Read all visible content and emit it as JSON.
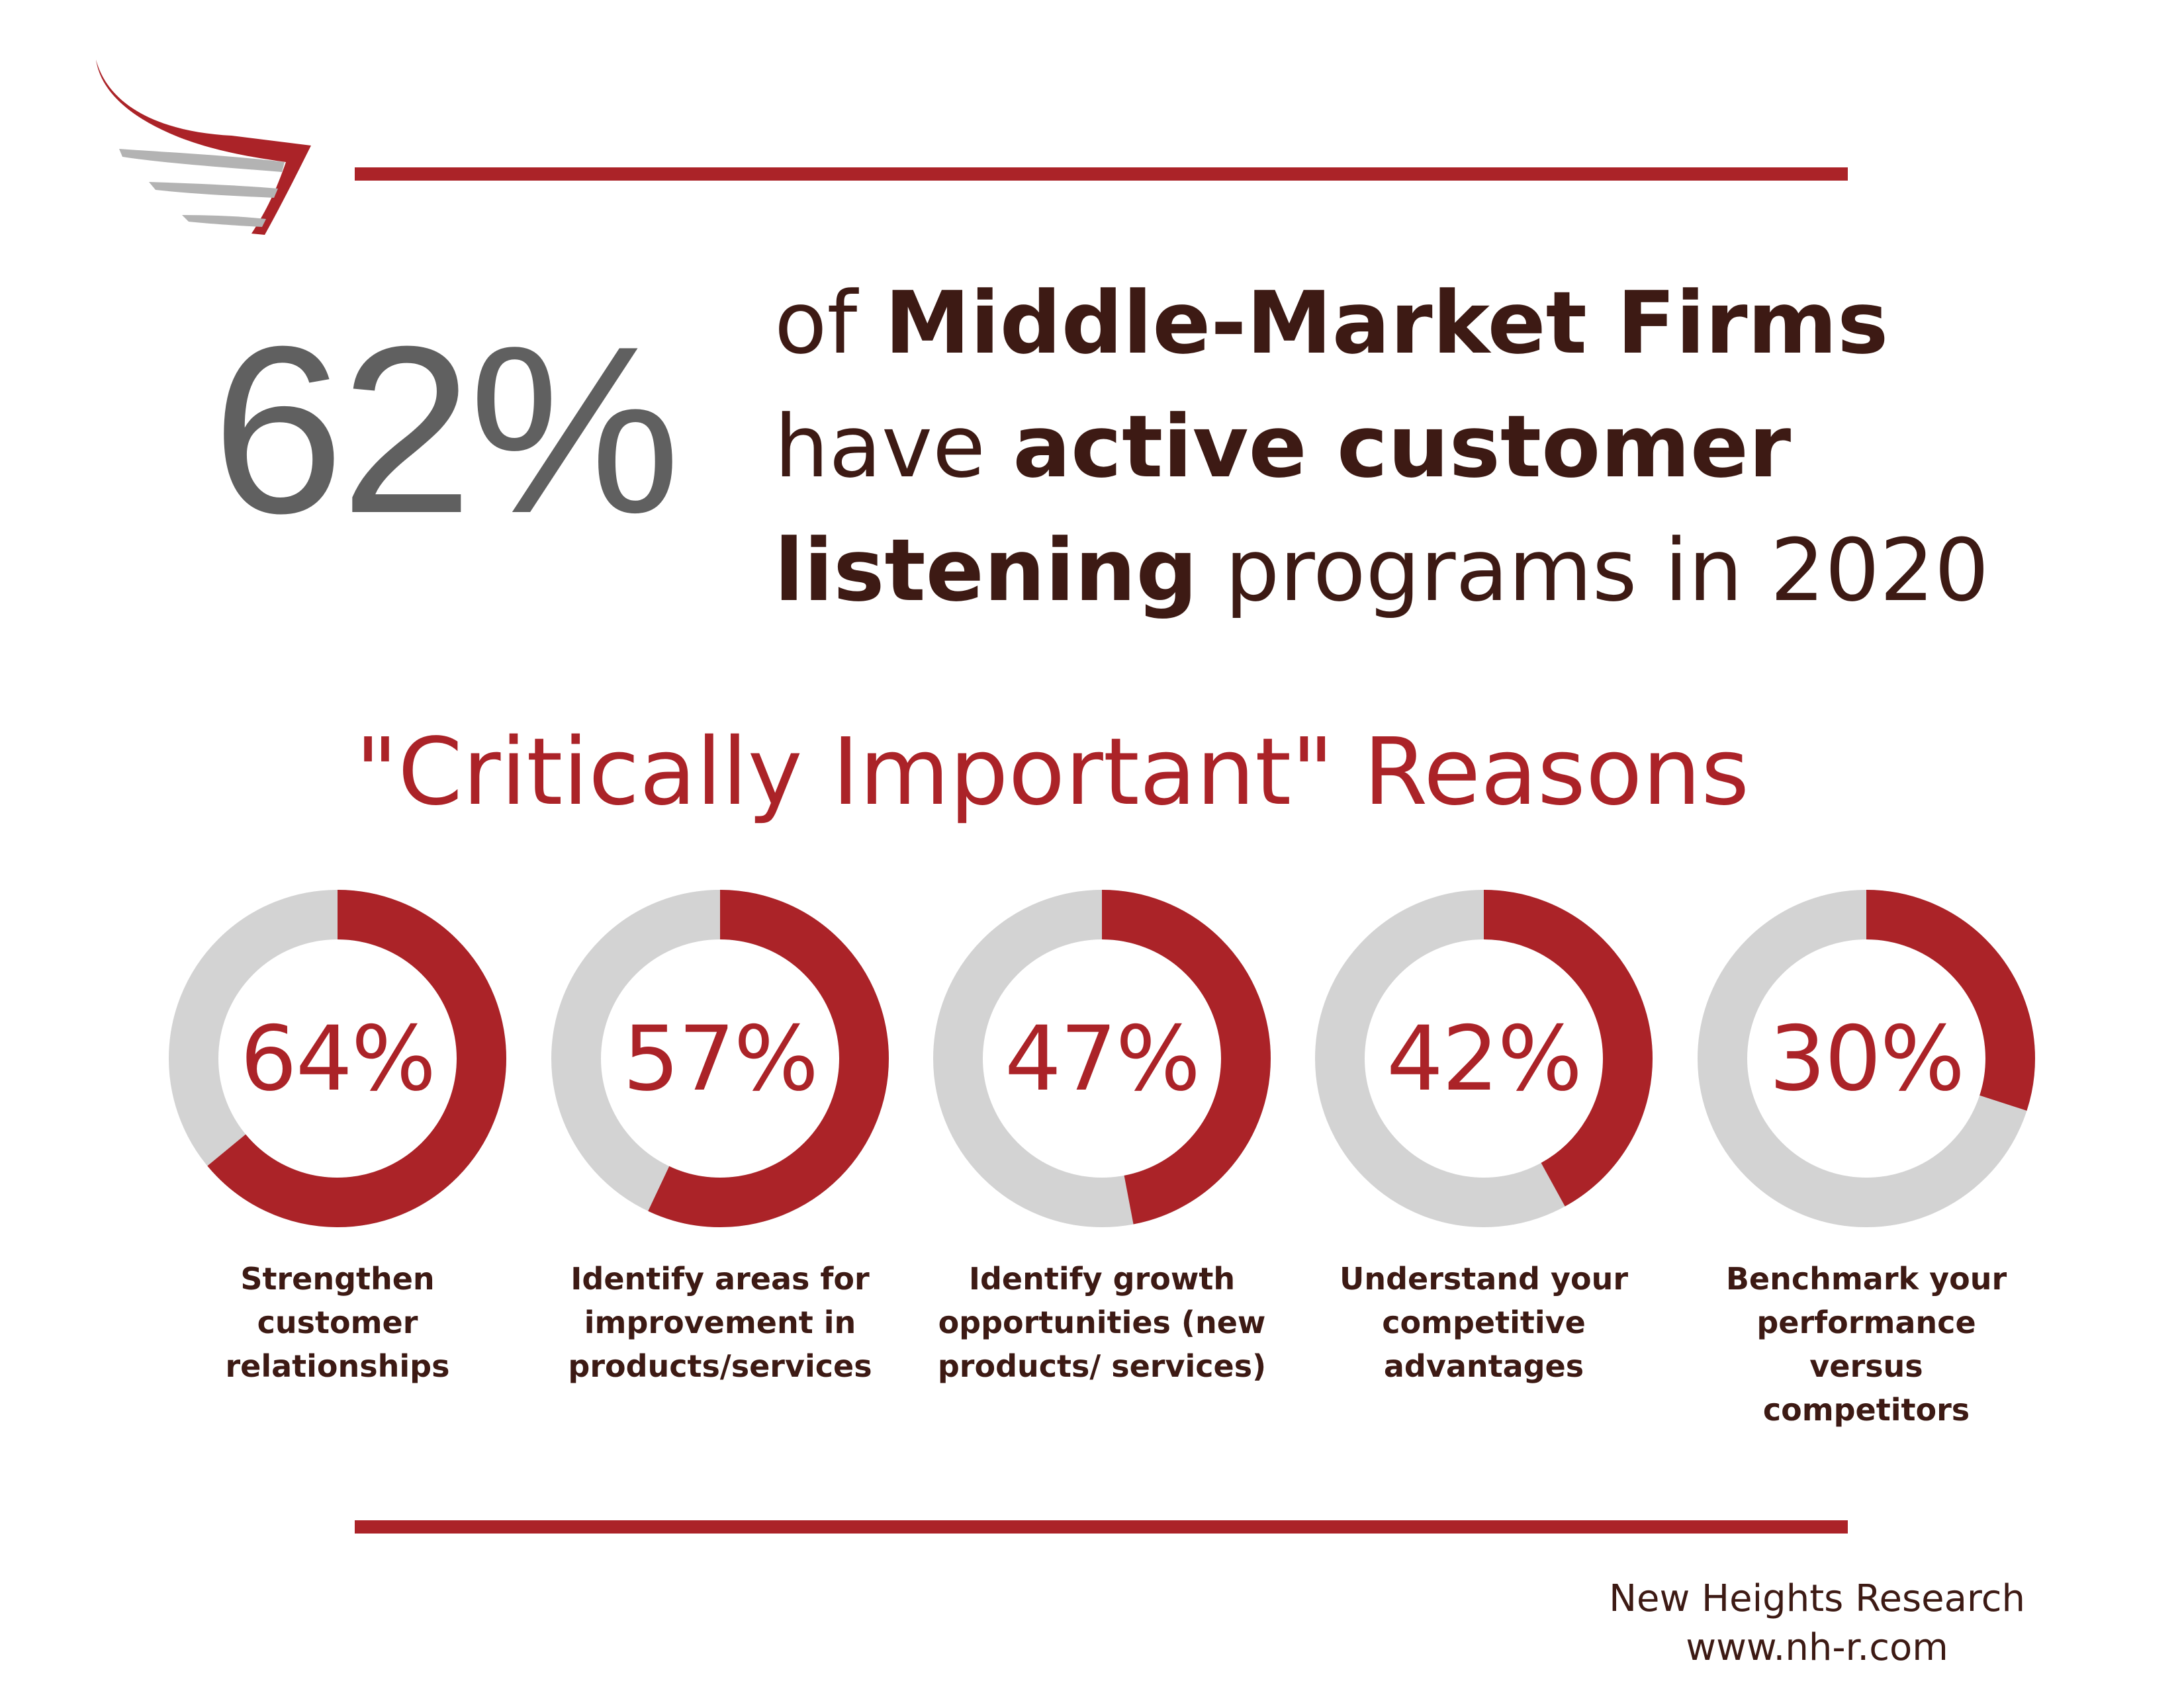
{
  "hero": {
    "percent": "62%",
    "line1_light": "of ",
    "line1_bold": "Middle-Market Firms",
    "line2_light": "have ",
    "line2_bold": "active customer",
    "line3_bold": "listening",
    "line3_light": " programs in 2020"
  },
  "section_title": "\"Critically Important\" Reasons",
  "chart_data": {
    "type": "donut",
    "title": "\"Critically Important\" Reasons",
    "items": [
      {
        "label": "64%",
        "value": 64,
        "caption": [
          "Strengthen",
          "customer",
          "relationships"
        ]
      },
      {
        "label": "57%",
        "value": 57,
        "caption": [
          "Identify areas for",
          "improvement in",
          "products/services"
        ]
      },
      {
        "label": "47%",
        "value": 47,
        "caption": [
          "Identify growth",
          "opportunities (new",
          "products/ services)"
        ]
      },
      {
        "label": "42%",
        "value": 42,
        "caption": [
          "Understand your",
          "competitive",
          "advantages"
        ]
      },
      {
        "label": "30%",
        "value": 30,
        "caption": [
          "Benchmark your",
          "performance",
          "versus",
          "competitors"
        ]
      }
    ],
    "colors": {
      "filled": "#ab2328",
      "remaining": "#d3d3d3"
    }
  },
  "footer": {
    "company": "New Heights Research",
    "url": "www.nh-r.com"
  },
  "colors": {
    "accent": "#ab2328",
    "text_dark": "#3d1a14",
    "hero_gray": "#606060",
    "logo_gray": "#b3b3b3"
  }
}
